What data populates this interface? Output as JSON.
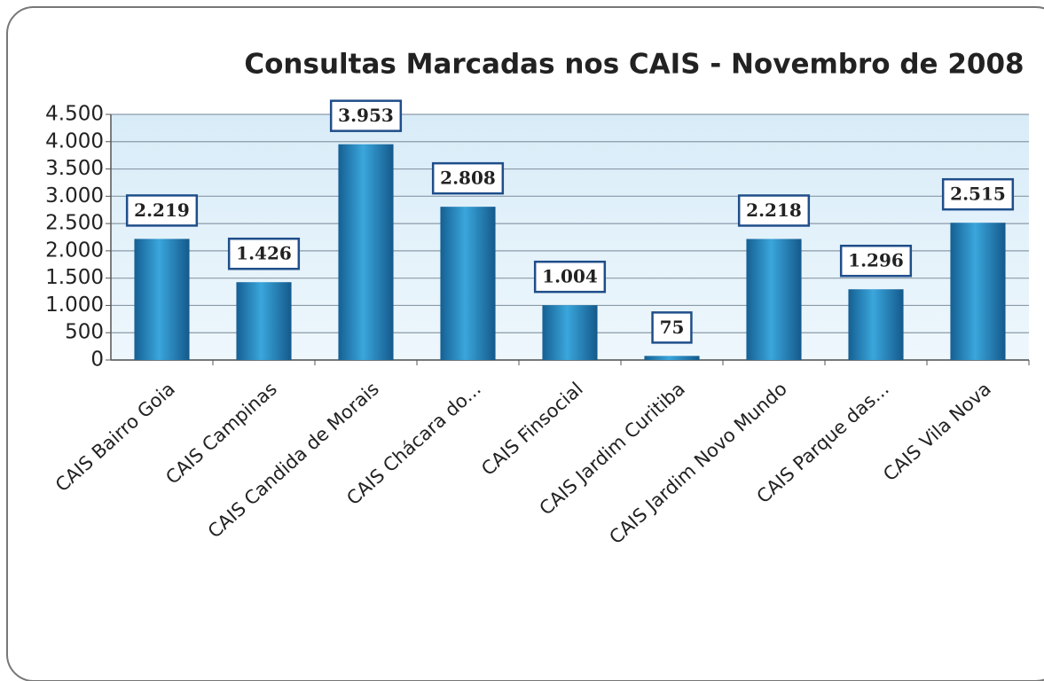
{
  "chart_data": {
    "type": "bar",
    "title": "Consultas Marcadas nos CAIS - Novembro de 2008",
    "categories": [
      "CAIS Bairro Goia",
      "CAIS Campinas",
      "CAIS Candida de Morais",
      "CAIS Chácara do...",
      "CAIS Finsocial",
      "CAIS Jardim Curitiba",
      "CAIS Jardim Novo Mundo",
      "CAIS Parque das...",
      "CAIS Vila Nova"
    ],
    "values": [
      2219,
      1426,
      3953,
      2808,
      1004,
      75,
      2218,
      1296,
      2515
    ],
    "value_labels": [
      "2.219",
      "1.426",
      "3.953",
      "2.808",
      "1.004",
      "75",
      "2.218",
      "1.296",
      "2.515"
    ],
    "color": "#1f7fc0",
    "ylim": [
      0,
      4500
    ],
    "yticks": [
      0,
      500,
      {
        "value": 1000,
        "label": "1.000"
      },
      {
        "value": 1500,
        "label": "1.500"
      },
      {
        "value": 2000,
        "label": "2.000"
      },
      {
        "value": 2500,
        "label": "2.500"
      },
      {
        "value": 3000,
        "label": "3.000"
      },
      {
        "value": 3500,
        "label": "3.500"
      },
      {
        "value": 4000,
        "label": "4.000"
      },
      {
        "value": 4500,
        "label": "4.500"
      }
    ],
    "grid": true
  }
}
